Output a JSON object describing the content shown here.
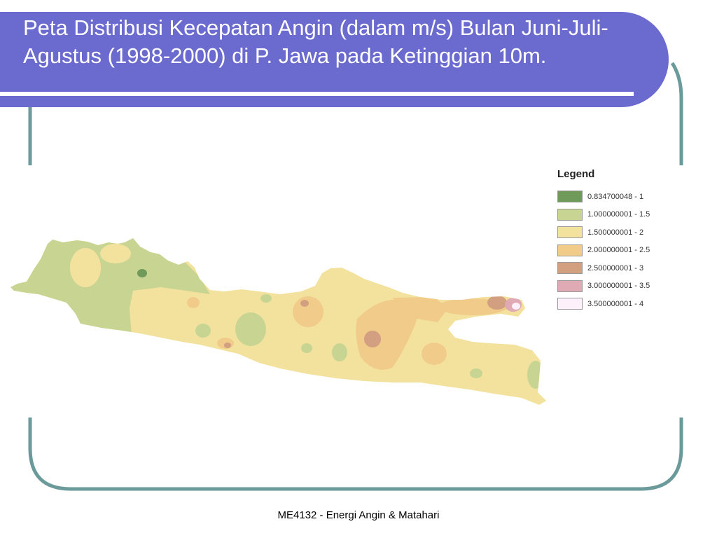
{
  "slide": {
    "title": "Peta Distribusi Kecepatan Angin (dalam m/s) Bulan Juni-Juli-Agustus (1998-2000) di P. Jawa pada Ketinggian 10m.",
    "footer": "ME4132 - Energi Angin & Matahari"
  },
  "colors": {
    "title_band": "#6b6bcf",
    "frame_line": "#6a9a9a",
    "title_text": "#ffffff"
  },
  "legend": {
    "title": "Legend",
    "items": [
      {
        "label": "0.834700048 - 1",
        "color": "#6f9a5a"
      },
      {
        "label": "1.000000001 - 1.5",
        "color": "#c8d592"
      },
      {
        "label": "1.500000001 - 2",
        "color": "#f3e29e"
      },
      {
        "label": "2.000000001 - 2.5",
        "color": "#f1cb8a"
      },
      {
        "label": "2.500000001 - 3",
        "color": "#d2a080"
      },
      {
        "label": "3.000000001 - 3.5",
        "color": "#dfaab4"
      },
      {
        "label": "3.500000001 - 4",
        "color": "#fdf0fa"
      }
    ]
  }
}
